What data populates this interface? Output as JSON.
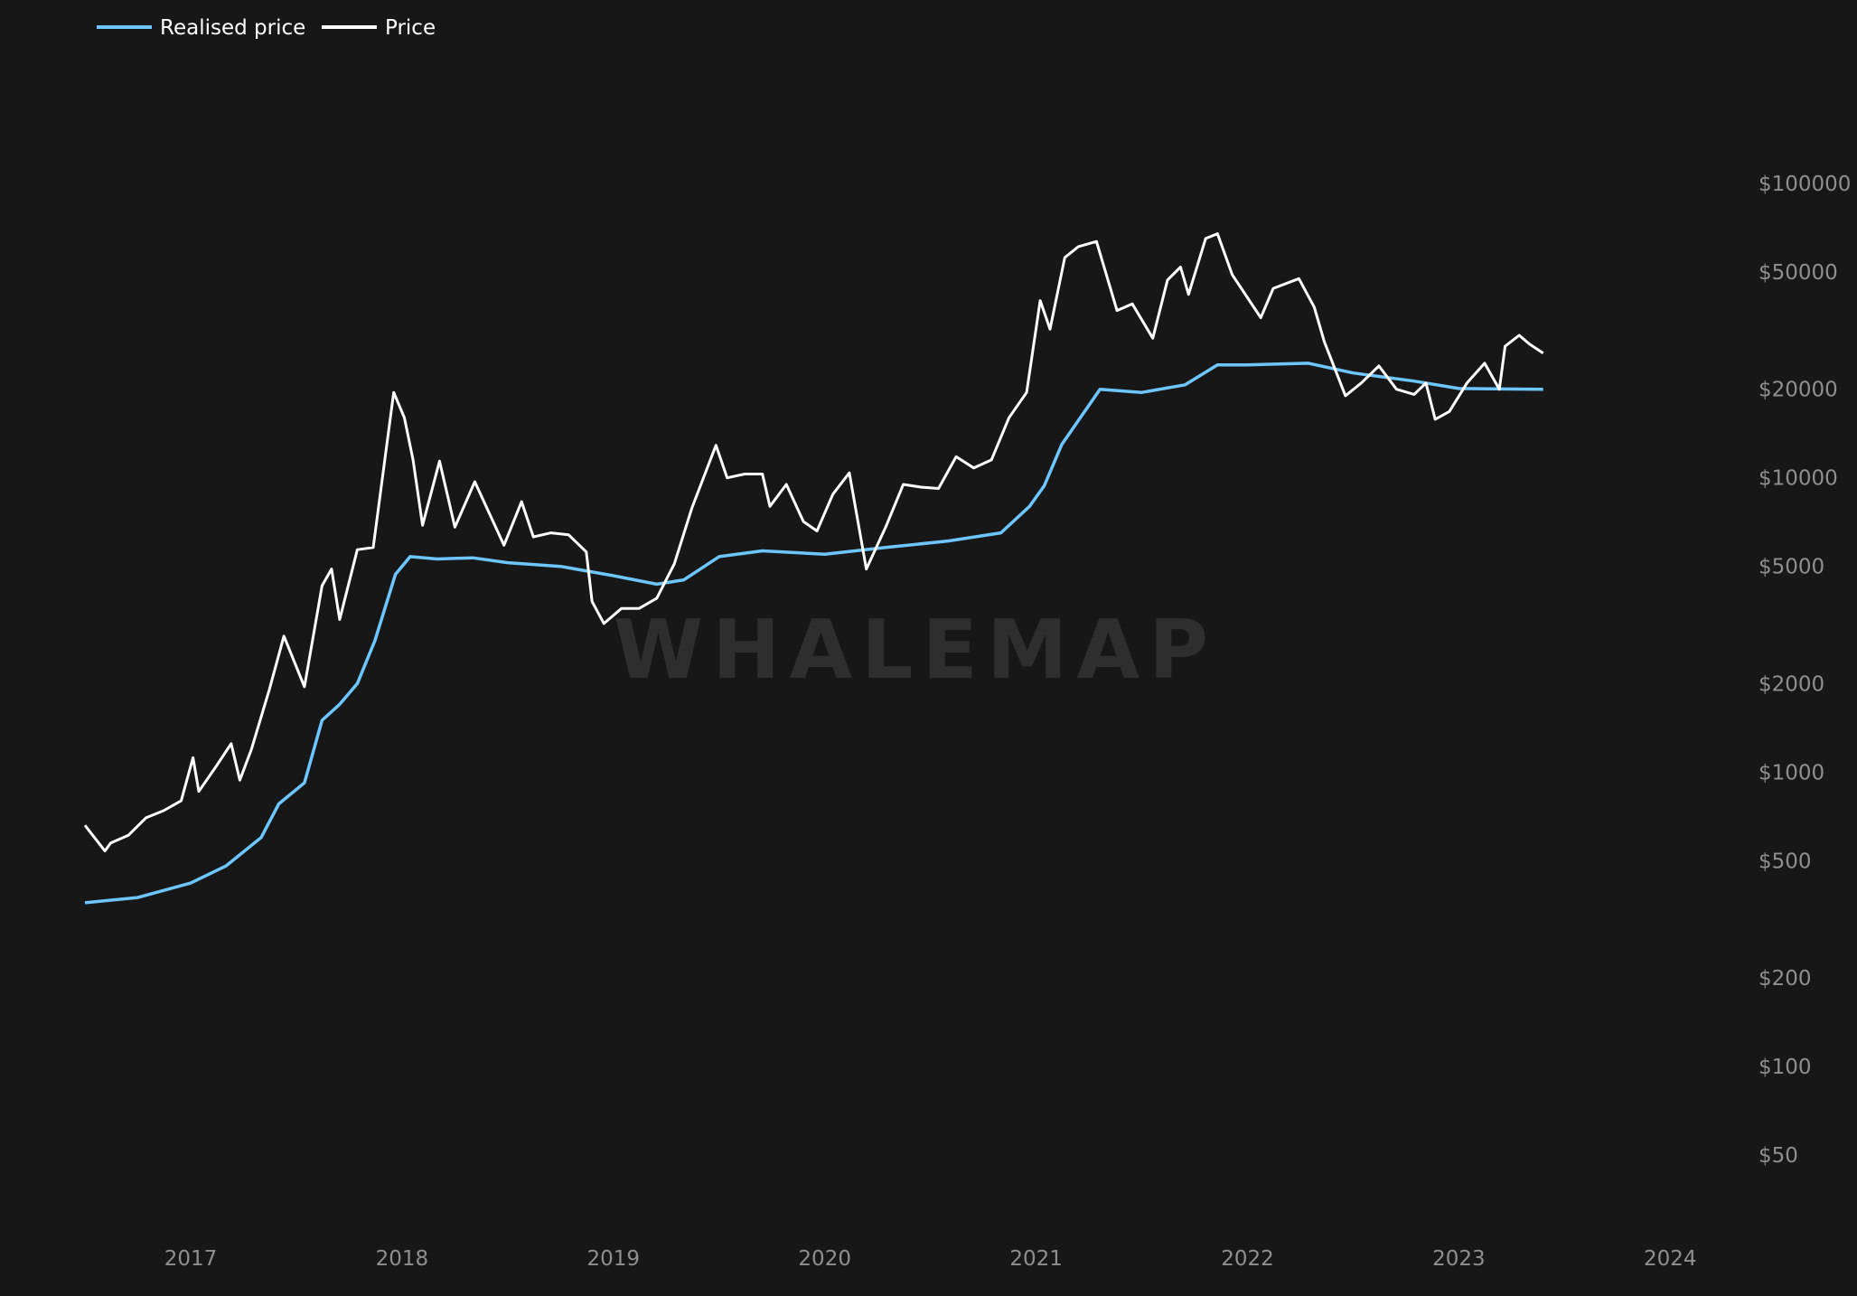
{
  "watermark": "WHALEMAP",
  "chart_data": {
    "type": "line",
    "title": "",
    "xlabel": "",
    "ylabel": "",
    "y_scale": "log",
    "ylim": [
      35,
      130000
    ],
    "xlim": [
      "2016-07",
      "2024-04"
    ],
    "grid": false,
    "legend_position": "top-left",
    "x_tick_labels": [
      "2017",
      "2018",
      "2019",
      "2020",
      "2021",
      "2022",
      "2023",
      "2024"
    ],
    "y_tick_labels": [
      {
        "label": "$100000",
        "value": 100000
      },
      {
        "label": "$50000",
        "value": 50000
      },
      {
        "label": "$20000",
        "value": 20000
      },
      {
        "label": "$10000",
        "value": 10000
      },
      {
        "label": "$5000",
        "value": 5000
      },
      {
        "label": "$2000",
        "value": 2000
      },
      {
        "label": "$1000",
        "value": 1000
      },
      {
        "label": "$500",
        "value": 500
      },
      {
        "label": "$200",
        "value": 200
      },
      {
        "label": "$100",
        "value": 100
      },
      {
        "label": "$50",
        "value": 50
      }
    ],
    "series": [
      {
        "name": "Realised price",
        "color": "#6ec6ff",
        "points": [
          [
            "2016-07-01",
            360
          ],
          [
            "2016-10-01",
            375
          ],
          [
            "2017-01-01",
            420
          ],
          [
            "2017-03-01",
            480
          ],
          [
            "2017-05-01",
            600
          ],
          [
            "2017-06-01",
            780
          ],
          [
            "2017-07-15",
            920
          ],
          [
            "2017-08-15",
            1500
          ],
          [
            "2017-09-15",
            1700
          ],
          [
            "2017-10-15",
            2000
          ],
          [
            "2017-11-15",
            2800
          ],
          [
            "2017-12-20",
            4700
          ],
          [
            "2018-01-15",
            5400
          ],
          [
            "2018-03-01",
            5300
          ],
          [
            "2018-05-01",
            5350
          ],
          [
            "2018-07-01",
            5150
          ],
          [
            "2018-10-01",
            5000
          ],
          [
            "2019-01-01",
            4650
          ],
          [
            "2019-03-15",
            4350
          ],
          [
            "2019-05-01",
            4500
          ],
          [
            "2019-07-01",
            5400
          ],
          [
            "2019-09-15",
            5650
          ],
          [
            "2020-01-01",
            5500
          ],
          [
            "2020-04-15",
            5800
          ],
          [
            "2020-08-01",
            6100
          ],
          [
            "2020-11-01",
            6500
          ],
          [
            "2020-12-20",
            8000
          ],
          [
            "2021-01-15",
            9400
          ],
          [
            "2021-02-15",
            13000
          ],
          [
            "2021-04-20",
            20000
          ],
          [
            "2021-07-01",
            19500
          ],
          [
            "2021-09-15",
            20700
          ],
          [
            "2021-11-10",
            24200
          ],
          [
            "2022-01-01",
            24200
          ],
          [
            "2022-04-15",
            24500
          ],
          [
            "2022-07-01",
            22700
          ],
          [
            "2022-10-15",
            21300
          ],
          [
            "2023-01-01",
            20100
          ],
          [
            "2023-05-25",
            20000
          ]
        ]
      },
      {
        "name": "Price",
        "color": "#ffffff",
        "points": [
          [
            "2016-07-01",
            660
          ],
          [
            "2016-08-05",
            540
          ],
          [
            "2016-08-15",
            575
          ],
          [
            "2016-09-15",
            610
          ],
          [
            "2016-10-15",
            700
          ],
          [
            "2016-11-15",
            740
          ],
          [
            "2016-12-15",
            800
          ],
          [
            "2017-01-05",
            1120
          ],
          [
            "2017-01-15",
            860
          ],
          [
            "2017-02-15",
            1050
          ],
          [
            "2017-03-10",
            1250
          ],
          [
            "2017-03-25",
            940
          ],
          [
            "2017-04-15",
            1200
          ],
          [
            "2017-05-15",
            1900
          ],
          [
            "2017-06-10",
            2900
          ],
          [
            "2017-07-15",
            1950
          ],
          [
            "2017-08-15",
            4300
          ],
          [
            "2017-09-01",
            4900
          ],
          [
            "2017-09-15",
            3300
          ],
          [
            "2017-10-15",
            5700
          ],
          [
            "2017-11-12",
            5800
          ],
          [
            "2017-11-28",
            10000
          ],
          [
            "2017-12-17",
            19500
          ],
          [
            "2018-01-05",
            16000
          ],
          [
            "2018-01-20",
            11500
          ],
          [
            "2018-02-06",
            6900
          ],
          [
            "2018-03-05",
            11400
          ],
          [
            "2018-04-01",
            6800
          ],
          [
            "2018-05-05",
            9700
          ],
          [
            "2018-06-25",
            5900
          ],
          [
            "2018-07-25",
            8300
          ],
          [
            "2018-08-15",
            6300
          ],
          [
            "2018-09-15",
            6500
          ],
          [
            "2018-10-15",
            6400
          ],
          [
            "2018-11-15",
            5600
          ],
          [
            "2018-11-25",
            3800
          ],
          [
            "2018-12-15",
            3200
          ],
          [
            "2019-01-15",
            3600
          ],
          [
            "2019-02-15",
            3600
          ],
          [
            "2019-03-15",
            3900
          ],
          [
            "2019-04-15",
            5100
          ],
          [
            "2019-05-15",
            7900
          ],
          [
            "2019-06-26",
            12900
          ],
          [
            "2019-07-15",
            10000
          ],
          [
            "2019-08-15",
            10300
          ],
          [
            "2019-09-15",
            10300
          ],
          [
            "2019-09-28",
            8000
          ],
          [
            "2019-10-26",
            9500
          ],
          [
            "2019-11-25",
            7100
          ],
          [
            "2019-12-18",
            6600
          ],
          [
            "2020-01-15",
            8800
          ],
          [
            "2020-02-13",
            10400
          ],
          [
            "2020-03-12",
            4900
          ],
          [
            "2020-04-15",
            6800
          ],
          [
            "2020-05-15",
            9500
          ],
          [
            "2020-06-15",
            9300
          ],
          [
            "2020-07-15",
            9200
          ],
          [
            "2020-08-15",
            11800
          ],
          [
            "2020-09-15",
            10800
          ],
          [
            "2020-10-15",
            11500
          ],
          [
            "2020-11-15",
            16000
          ],
          [
            "2020-12-15",
            19500
          ],
          [
            "2021-01-08",
            40000
          ],
          [
            "2021-01-25",
            32000
          ],
          [
            "2021-02-20",
            56000
          ],
          [
            "2021-03-13",
            61000
          ],
          [
            "2021-04-14",
            63500
          ],
          [
            "2021-05-19",
            37000
          ],
          [
            "2021-06-15",
            39000
          ],
          [
            "2021-07-20",
            29800
          ],
          [
            "2021-08-15",
            47000
          ],
          [
            "2021-09-07",
            52000
          ],
          [
            "2021-09-21",
            42000
          ],
          [
            "2021-10-20",
            65000
          ],
          [
            "2021-11-10",
            67500
          ],
          [
            "2021-12-05",
            49000
          ],
          [
            "2022-01-24",
            35000
          ],
          [
            "2022-02-15",
            44000
          ],
          [
            "2022-03-29",
            47500
          ],
          [
            "2022-04-25",
            38000
          ],
          [
            "2022-05-12",
            29000
          ],
          [
            "2022-06-18",
            19000
          ],
          [
            "2022-07-15",
            21000
          ],
          [
            "2022-08-15",
            24000
          ],
          [
            "2022-09-15",
            20000
          ],
          [
            "2022-10-15",
            19200
          ],
          [
            "2022-11-05",
            21000
          ],
          [
            "2022-11-21",
            15800
          ],
          [
            "2022-12-15",
            16800
          ],
          [
            "2023-01-15",
            21000
          ],
          [
            "2023-02-15",
            24500
          ],
          [
            "2023-03-10",
            20000
          ],
          [
            "2023-03-20",
            28000
          ],
          [
            "2023-04-14",
            30500
          ],
          [
            "2023-05-01",
            28500
          ],
          [
            "2023-05-25",
            26500
          ]
        ]
      }
    ]
  }
}
